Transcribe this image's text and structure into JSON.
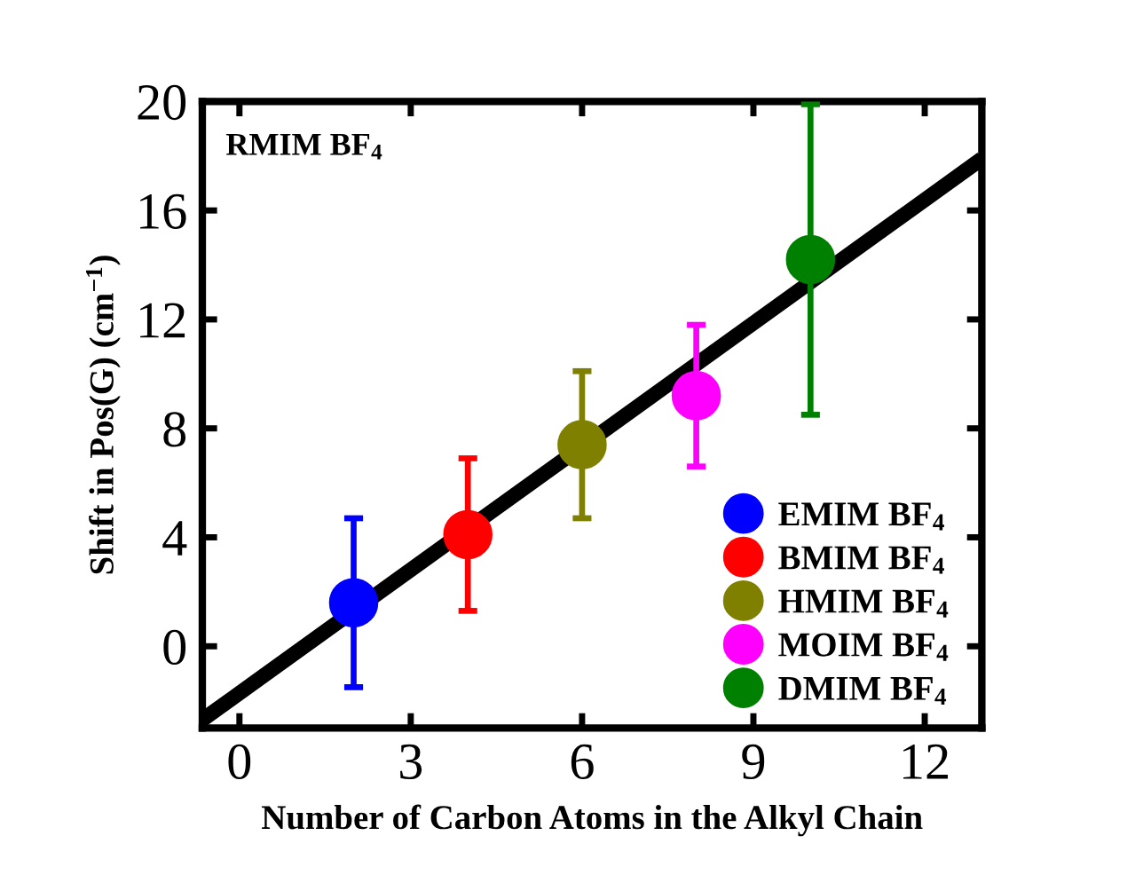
{
  "chart_data": {
    "type": "scatter",
    "xlabel": "Number of Carbon Atoms in the Alkyl Chain",
    "ylabel": "Shift in Pos(G) (cm$^{−1}$)",
    "annotations": [
      "RMIM BF$_{4}$"
    ],
    "xlim": [
      -0.65,
      13
    ],
    "xticks": [
      0,
      3,
      6,
      9,
      12
    ],
    "ylim": [
      -3,
      20
    ],
    "yticks": [
      0,
      4,
      8,
      12,
      16,
      20
    ],
    "legend": "bottom right",
    "marker": "circle",
    "grid": false,
    "series": [
      {
        "name": "EMIM BF$_{4}$",
        "color": "#0000ff",
        "x": [
          2
        ],
        "values": [
          1.6
        ],
        "errors": [
          3.1
        ]
      },
      {
        "name": "BMIM BF$_{4}$",
        "color": "#ff0000",
        "x": [
          4
        ],
        "values": [
          4.1
        ],
        "errors": [
          2.8
        ]
      },
      {
        "name": "HMIM BF$_{4}$",
        "color": "#808000",
        "x": [
          6
        ],
        "values": [
          7.4
        ],
        "errors": [
          2.7
        ]
      },
      {
        "name": "MOIM BF$_{4}$",
        "color": "#ff00ff",
        "x": [
          8
        ],
        "values": [
          9.2
        ],
        "errors": [
          2.6
        ]
      },
      {
        "name": "DMIM BF$_{4}$",
        "color": "#008000",
        "x": [
          10
        ],
        "values": [
          14.2
        ],
        "errors": [
          5.7
        ]
      },
      {
        "type": "line",
        "color": "#000000",
        "x": [
          -0.65,
          13
        ],
        "values": [
          -2.7,
          17.9
        ],
        "marker": "none",
        "line_style": "solid"
      }
    ]
  }
}
